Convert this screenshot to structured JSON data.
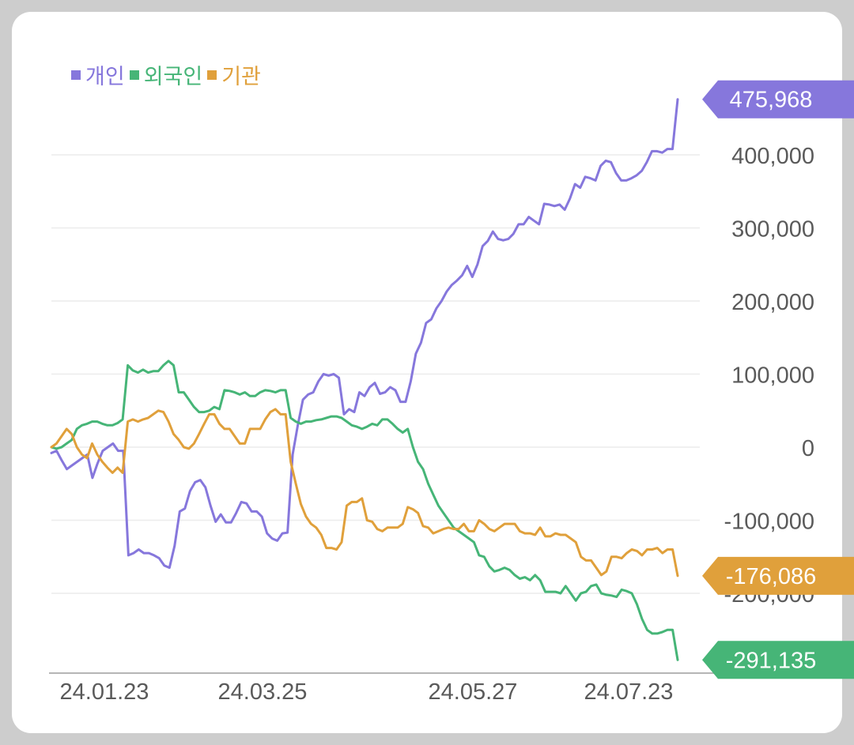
{
  "chart_data": {
    "type": "line",
    "legend_position": "top-left",
    "grid": true,
    "ylim": [
      -310000,
      480000
    ],
    "y_ticks": [
      "400,000",
      "300,000",
      "200,000",
      "100,000",
      "0",
      "-100,000",
      "-200,000"
    ],
    "y_tick_values": [
      400000,
      300000,
      200000,
      100000,
      0,
      -100000,
      -200000
    ],
    "x_ticks": [
      "24.01.23",
      "24.03.25",
      "24.05.27",
      "24.07.23"
    ],
    "series": [
      {
        "name": "개인",
        "color": "#8677dc",
        "last_label": "475,968",
        "last_value": 475968,
        "values": [
          -8000,
          -5000,
          -18000,
          -30000,
          -25000,
          -20000,
          -15000,
          -10000,
          -42000,
          -22000,
          -5000,
          0,
          5000,
          -5000,
          -5000,
          -148000,
          -145000,
          -140000,
          -145000,
          -145000,
          -148000,
          -152000,
          -162000,
          -165000,
          -135000,
          -88000,
          -84000,
          -60000,
          -48000,
          -45000,
          -55000,
          -80000,
          -102000,
          -92000,
          -103000,
          -103000,
          -90000,
          -75000,
          -77000,
          -88000,
          -88000,
          -95000,
          -118000,
          -125000,
          -128000,
          -118000,
          -117000,
          -10000,
          30000,
          65000,
          72000,
          75000,
          90000,
          100000,
          98000,
          100000,
          95000,
          45000,
          52000,
          48000,
          75000,
          70000,
          82000,
          88000,
          73000,
          75000,
          82000,
          78000,
          62000,
          62000,
          90000,
          128000,
          143000,
          170000,
          175000,
          190000,
          200000,
          213000,
          222000,
          228000,
          235000,
          248000,
          233000,
          250000,
          275000,
          282000,
          295000,
          285000,
          283000,
          285000,
          292000,
          305000,
          305000,
          315000,
          310000,
          305000,
          333000,
          332000,
          330000,
          332000,
          325000,
          340000,
          360000,
          355000,
          370000,
          368000,
          365000,
          385000,
          392000,
          390000,
          375000,
          365000,
          365000,
          368000,
          372000,
          378000,
          390000,
          405000,
          405000,
          403000,
          408000,
          408000,
          475968
        ]
      },
      {
        "name": "외국인",
        "color": "#46b577",
        "last_label": "-291,135",
        "last_value": -291135,
        "values": [
          0,
          -2000,
          0,
          5000,
          10000,
          25000,
          30000,
          32000,
          35000,
          35000,
          32000,
          30000,
          30000,
          33000,
          38000,
          112000,
          105000,
          102000,
          106000,
          102000,
          104000,
          104000,
          112000,
          118000,
          112000,
          75000,
          75000,
          65000,
          55000,
          48000,
          48000,
          50000,
          55000,
          52000,
          78000,
          77000,
          75000,
          72000,
          75000,
          70000,
          70000,
          75000,
          78000,
          77000,
          75000,
          78000,
          78000,
          40000,
          35000,
          32000,
          35000,
          35000,
          37000,
          38000,
          40000,
          42000,
          42000,
          40000,
          35000,
          30000,
          28000,
          25000,
          28000,
          32000,
          30000,
          38000,
          38000,
          32000,
          25000,
          20000,
          25000,
          0,
          -20000,
          -30000,
          -50000,
          -65000,
          -80000,
          -90000,
          -100000,
          -110000,
          -115000,
          -120000,
          -125000,
          -130000,
          -148000,
          -150000,
          -163000,
          -170000,
          -168000,
          -165000,
          -168000,
          -175000,
          -180000,
          -178000,
          -182000,
          -175000,
          -182000,
          -198000,
          -198000,
          -198000,
          -200000,
          -190000,
          -200000,
          -210000,
          -200000,
          -198000,
          -190000,
          -188000,
          -200000,
          -202000,
          -203000,
          -205000,
          -195000,
          -197000,
          -200000,
          -215000,
          -235000,
          -250000,
          -255000,
          -255000,
          -253000,
          -250000,
          -250000,
          -291135
        ]
      },
      {
        "name": "기관",
        "color": "#e0a03b",
        "last_label": "-176,086",
        "last_value": -176086,
        "values": [
          0,
          5000,
          15000,
          25000,
          18000,
          0,
          -10000,
          -15000,
          5000,
          -10000,
          -20000,
          -28000,
          -35000,
          -28000,
          -35000,
          35000,
          38000,
          35000,
          38000,
          40000,
          45000,
          50000,
          48000,
          35000,
          18000,
          10000,
          0,
          -2000,
          5000,
          18000,
          32000,
          45000,
          45000,
          32000,
          25000,
          25000,
          15000,
          5000,
          5000,
          25000,
          25000,
          25000,
          38000,
          48000,
          52000,
          45000,
          45000,
          -20000,
          -50000,
          -78000,
          -95000,
          -105000,
          -110000,
          -120000,
          -138000,
          -138000,
          -140000,
          -130000,
          -80000,
          -75000,
          -75000,
          -70000,
          -100000,
          -102000,
          -112000,
          -115000,
          -110000,
          -110000,
          -110000,
          -105000,
          -82000,
          -85000,
          -90000,
          -108000,
          -110000,
          -118000,
          -115000,
          -112000,
          -110000,
          -112000,
          -112000,
          -105000,
          -115000,
          -115000,
          -100000,
          -105000,
          -112000,
          -115000,
          -110000,
          -105000,
          -105000,
          -105000,
          -115000,
          -118000,
          -118000,
          -120000,
          -110000,
          -122000,
          -122000,
          -118000,
          -120000,
          -120000,
          -125000,
          -130000,
          -150000,
          -155000,
          -155000,
          -165000,
          -175000,
          -170000,
          -150000,
          -150000,
          -152000,
          -145000,
          -140000,
          -142000,
          -148000,
          -140000,
          -140000,
          -138000,
          -145000,
          -140000,
          -140000,
          -176086
        ]
      }
    ]
  }
}
